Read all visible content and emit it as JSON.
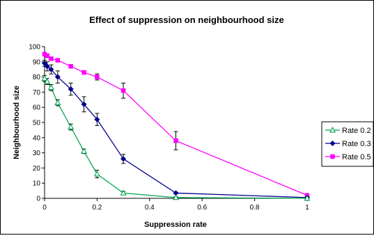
{
  "chart_data": {
    "type": "line",
    "title": "Effect of suppression on neighbourhood size",
    "xlabel": "Suppression rate",
    "ylabel": "Neighbourhood size",
    "xlim": [
      0,
      1
    ],
    "ylim": [
      0,
      100
    ],
    "x_ticks": [
      "0",
      "0.2",
      "0.4",
      "0.6",
      "0.8",
      "1"
    ],
    "y_ticks": [
      "0",
      "10",
      "20",
      "30",
      "40",
      "50",
      "60",
      "70",
      "80",
      "90",
      "100"
    ],
    "grid": false,
    "legend_position": "right",
    "series": [
      {
        "name": "Rate 0.2",
        "color": "#00a651",
        "marker": "triangle-open",
        "x": [
          0,
          0.01,
          0.025,
          0.05,
          0.1,
          0.15,
          0.2,
          0.3,
          0.5,
          1
        ],
        "y": [
          79,
          77,
          73,
          63,
          47,
          31,
          16,
          3.5,
          0.5,
          0
        ],
        "error": [
          2,
          2,
          2,
          2,
          2,
          1.5,
          2.5,
          1,
          0.5,
          0
        ]
      },
      {
        "name": "Rate 0.3",
        "color": "#00008b",
        "marker": "diamond",
        "x": [
          0,
          0.01,
          0.025,
          0.05,
          0.1,
          0.15,
          0.2,
          0.3,
          0.5,
          1
        ],
        "y": [
          89,
          87,
          85,
          80,
          72,
          62,
          52,
          26,
          3.5,
          0.5
        ],
        "error": [
          2,
          3,
          3,
          4,
          4,
          5,
          4,
          3,
          0.5,
          0.5
        ]
      },
      {
        "name": "Rate 0.5",
        "color": "#ff00ff",
        "marker": "square",
        "x": [
          0,
          0.01,
          0.025,
          0.05,
          0.1,
          0.15,
          0.2,
          0.3,
          0.5,
          1
        ],
        "y": [
          95,
          94,
          92,
          91,
          87,
          83,
          80,
          71,
          38,
          2
        ],
        "error": [
          1,
          1,
          1,
          1,
          1,
          1,
          2,
          5,
          6,
          1
        ]
      }
    ]
  }
}
